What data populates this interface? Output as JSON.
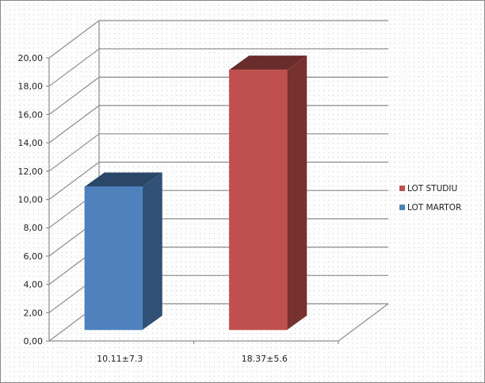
{
  "chart_data": {
    "type": "bar",
    "style": "3d-column",
    "categories": [
      "10.11±7.3",
      "18.37±5.6"
    ],
    "series": [
      {
        "name": "LOT MARTOR",
        "color": "#4f81bd",
        "values": [
          10.11,
          null
        ]
      },
      {
        "name": "LOT STUDIU",
        "color": "#c0504d",
        "values": [
          null,
          18.37
        ]
      }
    ],
    "y_ticks": [
      "0,00",
      "2,00",
      "4,00",
      "6,00",
      "8,00",
      "10,00",
      "12,00",
      "14,00",
      "16,00",
      "18,00",
      "20,00"
    ],
    "ylim": [
      0,
      20
    ],
    "grid": true,
    "legend_position": "right",
    "legend_order": [
      "LOT STUDIU",
      "LOT MARTOR"
    ]
  }
}
